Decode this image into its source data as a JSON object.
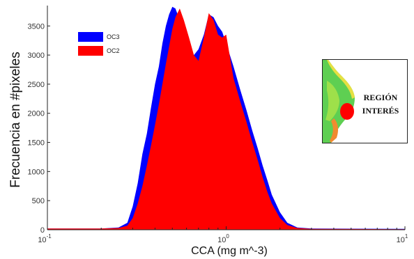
{
  "chart_data": {
    "type": "area",
    "title": "",
    "xlabel": "CCA (mg m^-3)",
    "ylabel": "Frecuencia en #pixeles",
    "xscale": "log",
    "xlim": [
      0.1,
      10
    ],
    "ylim": [
      0,
      3850
    ],
    "x_tick_labels": [
      "10^-1",
      "10^0",
      "10^1"
    ],
    "y_ticks": [
      0,
      500,
      1000,
      1500,
      2000,
      2500,
      3000,
      3500
    ],
    "grid": false,
    "legend_position": "top-left",
    "colors": {
      "OC3": "#0000ff",
      "OC2": "#ff0000"
    },
    "series": [
      {
        "name": "OC3",
        "x": [
          0.1,
          0.2,
          0.25,
          0.28,
          0.3,
          0.32,
          0.34,
          0.36,
          0.38,
          0.4,
          0.42,
          0.44,
          0.46,
          0.48,
          0.5,
          0.52,
          0.55,
          0.58,
          0.62,
          0.66,
          0.7,
          0.75,
          0.8,
          0.85,
          0.9,
          0.95,
          1.0,
          1.1,
          1.2,
          1.3,
          1.4,
          1.5,
          1.6,
          1.7,
          1.8,
          2.0,
          2.2,
          2.5,
          3.0,
          10
        ],
        "values": [
          20,
          20,
          40,
          120,
          400,
          800,
          1300,
          1650,
          2100,
          2500,
          2800,
          3200,
          3500,
          3700,
          3830,
          3800,
          3600,
          3400,
          3100,
          3000,
          3100,
          3350,
          3700,
          3650,
          3500,
          3400,
          3200,
          2800,
          2400,
          2050,
          1700,
          1400,
          1100,
          850,
          600,
          300,
          120,
          40,
          20,
          15
        ]
      },
      {
        "name": "OC2",
        "x": [
          0.1,
          0.2,
          0.25,
          0.28,
          0.3,
          0.32,
          0.34,
          0.36,
          0.38,
          0.4,
          0.42,
          0.44,
          0.46,
          0.48,
          0.5,
          0.52,
          0.55,
          0.58,
          0.62,
          0.66,
          0.7,
          0.75,
          0.8,
          0.85,
          0.9,
          0.95,
          1.0,
          1.1,
          1.2,
          1.3,
          1.4,
          1.5,
          1.6,
          1.7,
          1.8,
          2.0,
          2.2,
          2.5,
          3.0,
          10
        ],
        "values": [
          20,
          20,
          30,
          70,
          200,
          450,
          750,
          1100,
          1450,
          1800,
          2150,
          2500,
          2850,
          3150,
          3450,
          3650,
          3800,
          3600,
          3300,
          3000,
          2900,
          3300,
          3720,
          3600,
          3350,
          3300,
          3350,
          2600,
          2200,
          1850,
          1500,
          1200,
          900,
          650,
          450,
          200,
          80,
          30,
          15,
          10
        ]
      }
    ]
  },
  "inset": {
    "label_line1": "REGIÓN",
    "label_line2": "INTERÉS"
  }
}
